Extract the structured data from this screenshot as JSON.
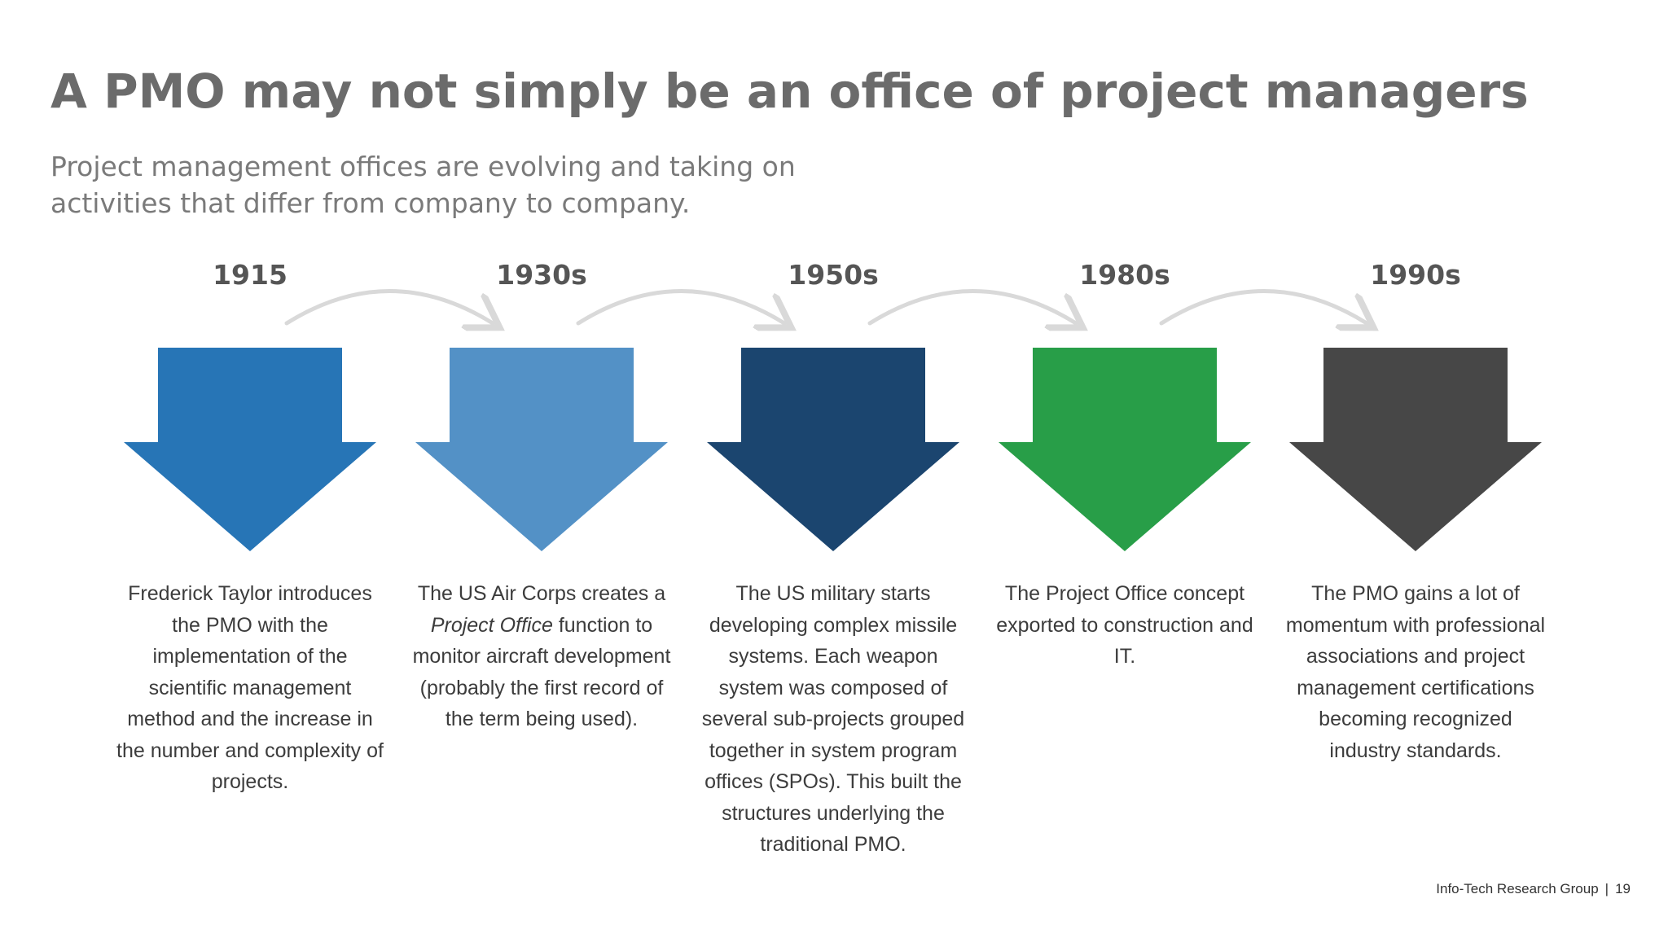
{
  "title": "A PMO may not simply be an office of project managers",
  "subtitle": {
    "line1": "Project management offices are evolving and taking on",
    "line2": "activities that differ from company to company."
  },
  "timeline": [
    {
      "year": "1915",
      "color": "#2775b6",
      "desc_before": "Frederick Taylor introduces the PMO with the implementation of the scientific management method and the increase in the number and complexity of projects.",
      "desc_em": "",
      "desc_after": ""
    },
    {
      "year": "1930s",
      "color": "#5391c6",
      "desc_before": "The US Air Corps creates a ",
      "desc_em": "Project Office",
      "desc_after": " function to monitor aircraft development (probably the first record of the term being used)."
    },
    {
      "year": "1950s",
      "color": "#1b456f",
      "desc_before": "The US military starts developing complex missile systems. Each weapon system was composed of several sub-projects grouped together in system program offices (SPOs). This built the structures underlying the traditional PMO.",
      "desc_em": "",
      "desc_after": ""
    },
    {
      "year": "1980s",
      "color": "#289e48",
      "desc_before": "The Project Office concept exported to construction and IT.",
      "desc_em": "",
      "desc_after": ""
    },
    {
      "year": "1990s",
      "color": "#474747",
      "desc_before": "The PMO gains a lot of momentum with professional associations and project management certifications becoming recognized industry standards.",
      "desc_em": "",
      "desc_after": ""
    }
  ],
  "connector_color": "#d9d9d9",
  "footer": {
    "org": "Info-Tech Research Group",
    "separator": "|",
    "page": "19"
  }
}
